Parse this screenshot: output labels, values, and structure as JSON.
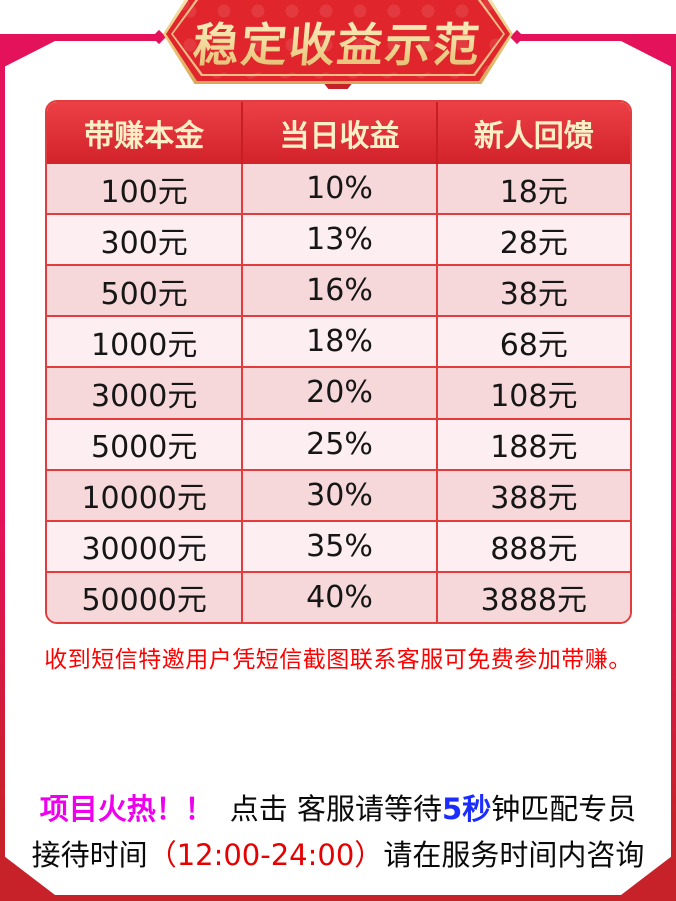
{
  "banner": {
    "title": "稳定收益示范"
  },
  "table": {
    "headers": [
      "带赚本金",
      "当日收益",
      "新人回馈"
    ],
    "rows": [
      [
        "100元",
        "10%",
        "18元"
      ],
      [
        "300元",
        "13%",
        "28元"
      ],
      [
        "500元",
        "16%",
        "38元"
      ],
      [
        "1000元",
        "18%",
        "68元"
      ],
      [
        "3000元",
        "20%",
        "108元"
      ],
      [
        "5000元",
        "25%",
        "188元"
      ],
      [
        "10000元",
        "30%",
        "388元"
      ],
      [
        "30000元",
        "35%",
        "888元"
      ],
      [
        "50000元",
        "40%",
        "3888元"
      ]
    ]
  },
  "notice": "收到短信特邀用户凭短信截图联系客服可免费参加带赚。",
  "footer": {
    "line1": {
      "hot": "项目火热！！",
      "mid": "点击 客服请等待",
      "seconds": "5秒",
      "tail": "钟匹配专员"
    },
    "line2": {
      "prefix": "接待时间",
      "time": "（12:00-24:00）",
      "suffix": "请在服务时间内咨询"
    }
  },
  "colors": {
    "frame-magenta": "#e4125a",
    "frame-red": "#c7222a",
    "banner-red": "#e0262c",
    "gold": "#ecc87c",
    "table-border": "#e23c3c",
    "header-red": "#d9262d",
    "header-text": "#faf0c8",
    "row-dark": "#f6d8da",
    "row-light": "#fdeff1",
    "notice-red": "#ff0000",
    "hot-magenta": "#ee00ee",
    "seconds-blue": "#1a2cff",
    "time-red": "#e60000"
  }
}
